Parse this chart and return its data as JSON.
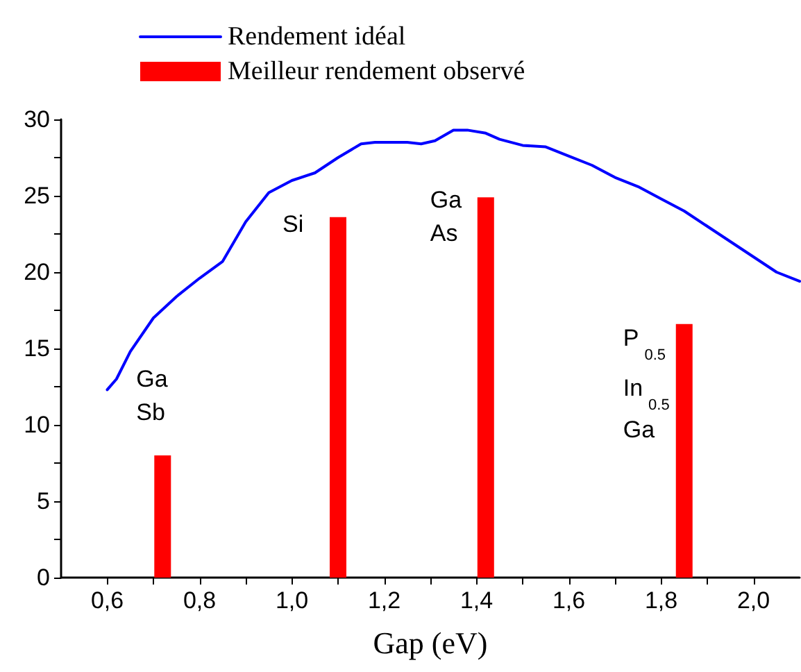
{
  "chart_data": {
    "type": "line",
    "xlabel": "Gap (eV)",
    "legend": "top",
    "grid": false,
    "marker": "none",
    "xlim": [
      0.5,
      2.1
    ],
    "ylim": [
      0,
      30
    ],
    "xticks": [
      {
        "value": 0.6,
        "label": "0,6"
      },
      {
        "value": 0.7,
        "label": null
      },
      {
        "value": 0.8,
        "label": "0,8"
      },
      {
        "value": 0.9,
        "label": null
      },
      {
        "value": 1.0,
        "label": "1,0"
      },
      {
        "value": 1.1,
        "label": null
      },
      {
        "value": 1.2,
        "label": "1,2"
      },
      {
        "value": 1.3,
        "label": null
      },
      {
        "value": 1.4,
        "label": "1,4"
      },
      {
        "value": 1.5,
        "label": null
      },
      {
        "value": 1.6,
        "label": "1,6"
      },
      {
        "value": 1.7,
        "label": null
      },
      {
        "value": 1.8,
        "label": "1,8"
      },
      {
        "value": 1.9,
        "label": null
      },
      {
        "value": 2.0,
        "label": "2,0"
      }
    ],
    "yticks": [
      0,
      {
        "value": 2.5,
        "label": null
      },
      5,
      {
        "value": 7.5,
        "label": null
      },
      10,
      {
        "value": 12.5,
        "label": null
      },
      15,
      {
        "value": 17.5,
        "label": null
      },
      20,
      {
        "value": 22.5,
        "label": null
      },
      25,
      {
        "value": 27.5,
        "label": null
      },
      30
    ],
    "series": [
      {
        "name": "Rendement idéal",
        "color": "#0000ff",
        "x": [
          0.6,
          0.62,
          0.65,
          0.7,
          0.75,
          0.8,
          0.85,
          0.9,
          0.95,
          1.0,
          1.05,
          1.1,
          1.15,
          1.18,
          1.25,
          1.28,
          1.31,
          1.35,
          1.38,
          1.42,
          1.45,
          1.5,
          1.55,
          1.6,
          1.65,
          1.7,
          1.75,
          1.8,
          1.85,
          1.9,
          1.95,
          2.0,
          2.05,
          2.1
        ],
        "values": [
          12.3,
          13,
          14.8,
          17,
          18.4,
          19.6,
          20.7,
          23.3,
          25.2,
          26,
          26.5,
          27.5,
          28.4,
          28.5,
          28.5,
          28.4,
          28.6,
          29.3,
          29.3,
          29.1,
          28.7,
          28.3,
          28.2,
          27.6,
          27,
          26.2,
          25.6,
          24.8,
          24,
          23,
          22,
          21,
          20,
          19.4
        ]
      },
      {
        "name": "Meilleur rendement observé",
        "type": "bar",
        "color": "#ff0000",
        "x": [
          0.72,
          1.1,
          1.42,
          1.85
        ],
        "values": [
          8,
          23.6,
          24.9,
          16.6
        ]
      }
    ],
    "annotations": [
      "Ga\nSb",
      "Si",
      "Ga\nAs",
      "P$_{0.5}$\nIn$_{0.5}$\nGa"
    ]
  }
}
